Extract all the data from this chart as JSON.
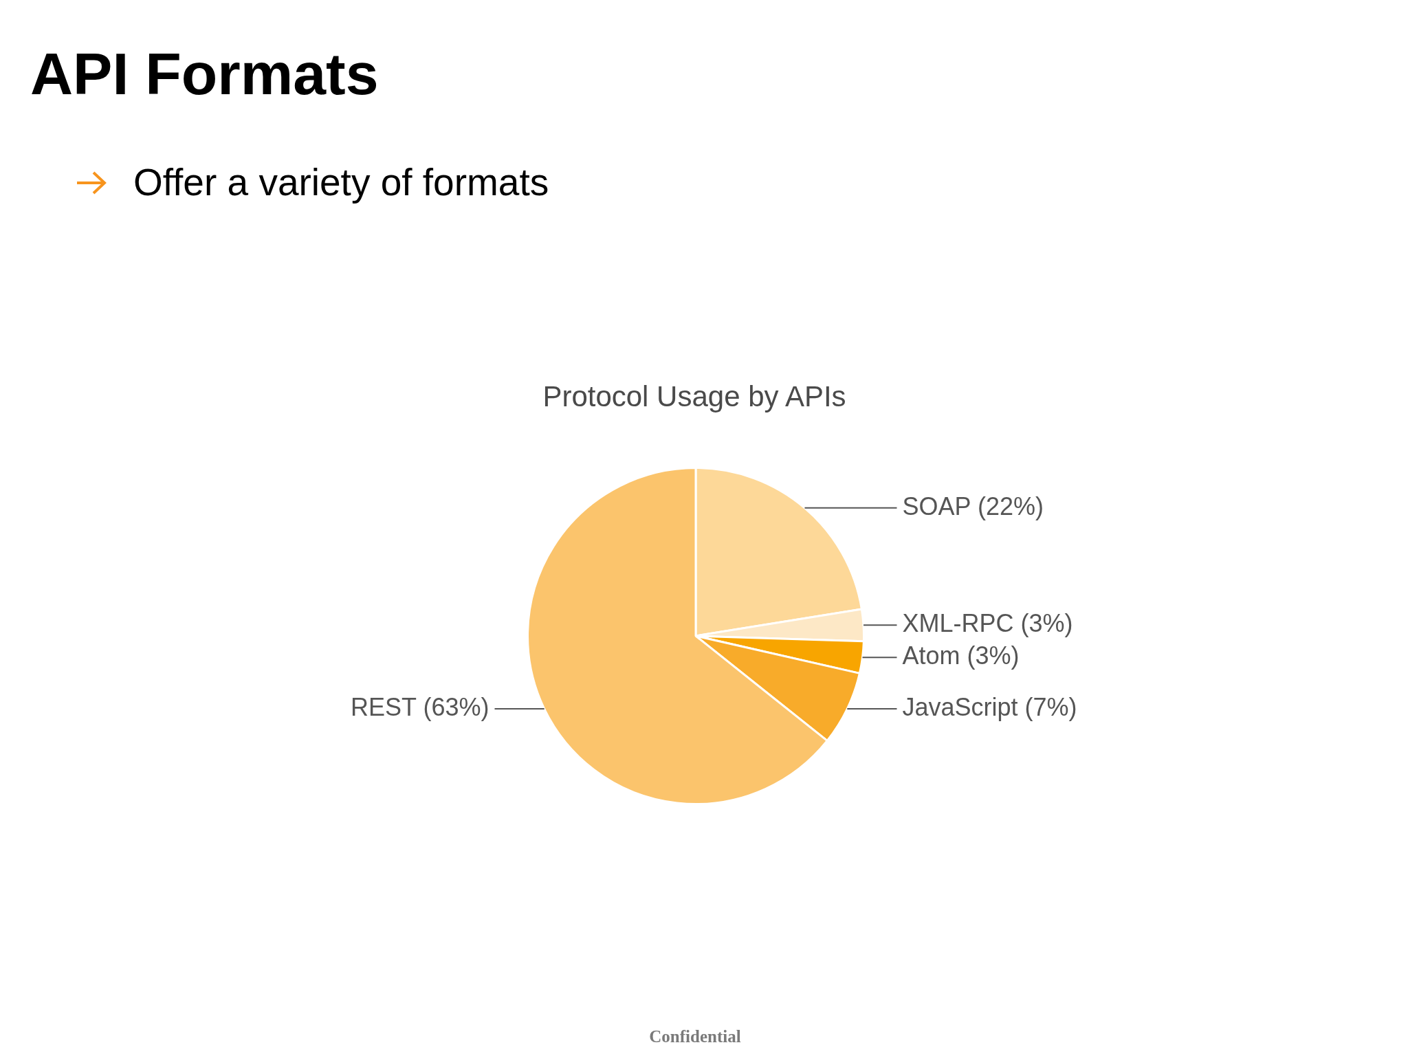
{
  "chart_data": {
    "type": "pie",
    "title": "API Formats",
    "subtitle": "Offer a variety of formats",
    "annotations": [
      "Protocol Usage by APIs",
      "Confidential"
    ],
    "categories": [
      "SOAP",
      "XML-RPC",
      "Atom",
      "JavaScript",
      "REST"
    ],
    "values": [
      22,
      3,
      3,
      7,
      63
    ],
    "colors": [
      "#fdd898",
      "#fde8c6",
      "#f8a500",
      "#f8ab2a",
      "#fbc46c"
    ],
    "value_labels": [
      "(22%)",
      "(3%)",
      "(3%)",
      "(7%)",
      "(63%)"
    ]
  }
}
